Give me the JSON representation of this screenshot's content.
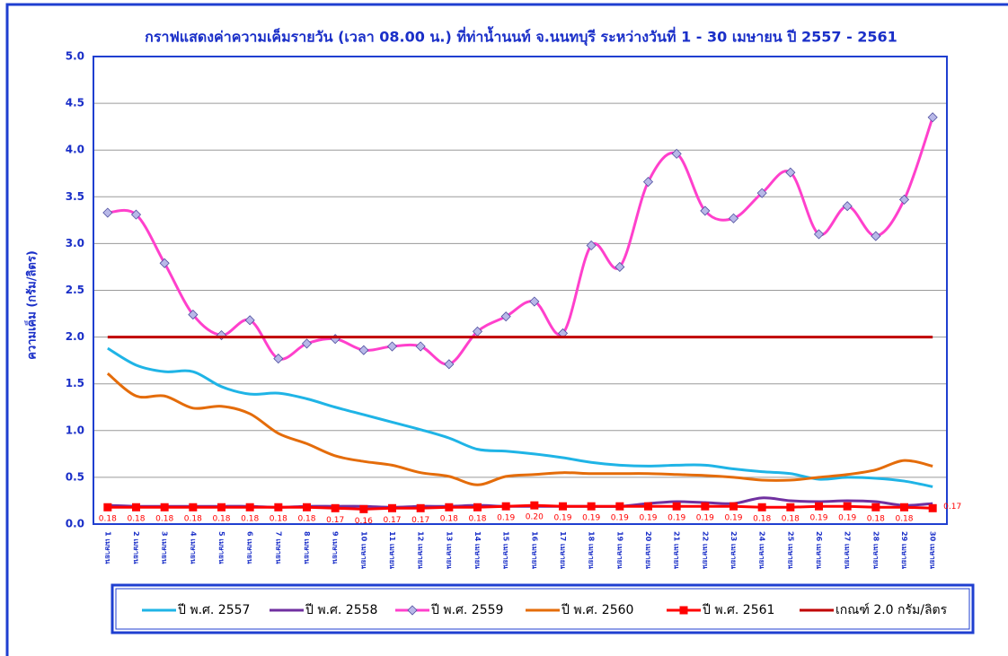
{
  "chart_data": {
    "type": "line",
    "title": "กราฟแสดงค่าความเค็มรายวัน (เวลา 08.00 น.) ที่ท่าน้ำนนท์ จ.นนทบุรี ระหว่างวันที่ 1 - 30 เมษายน ปี 2557 - 2561",
    "y_label": "ความเค็ม (กรัม/ลิตร)",
    "categories": [
      "1 เมษายน",
      "2 เมษายน",
      "3 เมษายน",
      "4 เมษายน",
      "5 เมษายน",
      "6 เมษายน",
      "7 เมษายน",
      "8 เมษายน",
      "9 เมษายน",
      "10 เมษายน",
      "11 เมษายน",
      "12 เมษายน",
      "13 เมษายน",
      "14 เมษายน",
      "15 เมษายน",
      "16 เมษายน",
      "17 เมษายน",
      "18 เมษายน",
      "19 เมษายน",
      "20 เมษายน",
      "21 เมษายน",
      "22 เมษายน",
      "23 เมษายน",
      "24 เมษายน",
      "25 เมษายน",
      "26 เมษายน",
      "27 เมษายน",
      "28 เมษายน",
      "29 เมษายน",
      "30 เมษายน"
    ],
    "series": [
      {
        "name": "ปี พ.ศ. 2557",
        "color": "#1fb4e6",
        "marker": "none",
        "values": [
          1.88,
          1.7,
          1.63,
          1.63,
          1.47,
          1.39,
          1.4,
          1.34,
          1.25,
          1.17,
          1.09,
          1.01,
          0.92,
          0.8,
          0.78,
          0.75,
          0.71,
          0.66,
          0.63,
          0.62,
          0.63,
          0.63,
          0.59,
          0.56,
          0.54,
          0.48,
          0.5,
          0.49,
          0.46,
          0.4
        ]
      },
      {
        "name": "ปี พ.ศ. 2558",
        "color": "#7030a0",
        "marker": "none",
        "values": [
          0.2,
          0.19,
          0.19,
          0.19,
          0.19,
          0.19,
          0.18,
          0.19,
          0.19,
          0.19,
          0.18,
          0.19,
          0.19,
          0.2,
          0.19,
          0.19,
          0.19,
          0.19,
          0.19,
          0.22,
          0.24,
          0.23,
          0.22,
          0.28,
          0.25,
          0.24,
          0.25,
          0.24,
          0.2,
          0.22
        ]
      },
      {
        "name": "ปี พ.ศ. 2559",
        "color": "#ff40cc",
        "marker": "diamond",
        "values": [
          3.33,
          3.31,
          2.79,
          2.24,
          2.02,
          2.18,
          1.77,
          1.93,
          1.98,
          1.86,
          1.9,
          1.9,
          1.71,
          2.06,
          2.22,
          2.38,
          2.04,
          2.98,
          2.75,
          3.66,
          3.96,
          3.35,
          3.27,
          3.54,
          3.76,
          3.1,
          3.4,
          3.08,
          3.47,
          4.35
        ]
      },
      {
        "name": "ปี พ.ศ. 2560",
        "color": "#e46c0a",
        "marker": "none",
        "values": [
          1.61,
          1.37,
          1.37,
          1.24,
          1.26,
          1.18,
          0.97,
          0.86,
          0.73,
          0.67,
          0.63,
          0.55,
          0.51,
          0.42,
          0.51,
          0.53,
          0.55,
          0.54,
          0.54,
          0.54,
          0.53,
          0.52,
          0.5,
          0.47,
          0.47,
          0.5,
          0.53,
          0.58,
          0.68,
          0.62
        ]
      },
      {
        "name": "ปี พ.ศ. 2561",
        "color": "#ff0000",
        "marker": "square",
        "values": [
          0.18,
          0.18,
          0.18,
          0.18,
          0.18,
          0.18,
          0.18,
          0.18,
          0.17,
          0.16,
          0.17,
          0.17,
          0.18,
          0.18,
          0.19,
          0.2,
          0.19,
          0.19,
          0.19,
          0.19,
          0.19,
          0.19,
          0.19,
          0.18,
          0.18,
          0.19,
          0.19,
          0.18,
          0.18,
          0.17
        ],
        "value_labels": [
          "0.18",
          "0.18",
          "0.18",
          "0.18",
          "0.18",
          "0.18",
          "0.18",
          "0.18",
          "0.17",
          "0.16",
          "0.17",
          "0.17",
          "0.18",
          "0.18",
          "0.19",
          "0.20",
          "0.19",
          "0.19",
          "0.19",
          "0.19",
          "0.19",
          "0.19",
          "0.19",
          "0.18",
          "0.18",
          "0.19",
          "0.19",
          "0.18",
          "0.18",
          "0.17"
        ]
      },
      {
        "name": "เกณฑ์ 2.0 กรัม/ลิตร",
        "color": "#c00000",
        "marker": "none",
        "values": [
          2,
          2,
          2,
          2,
          2,
          2,
          2,
          2,
          2,
          2,
          2,
          2,
          2,
          2,
          2,
          2,
          2,
          2,
          2,
          2,
          2,
          2,
          2,
          2,
          2,
          2,
          2,
          2,
          2,
          2
        ]
      }
    ],
    "ylim": [
      0,
      5
    ],
    "yticks": [
      {
        "value": 0,
        "label": "0.0"
      },
      {
        "value": 0.5,
        "label": "0.5"
      },
      {
        "value": 1,
        "label": "1.0"
      },
      {
        "value": 1.5,
        "label": "1.5"
      },
      {
        "value": 2,
        "label": "2.0"
      },
      {
        "value": 2.5,
        "label": "2.5"
      },
      {
        "value": 3,
        "label": "3.0"
      },
      {
        "value": 3.5,
        "label": "3.5"
      },
      {
        "value": 4,
        "label": "4.0"
      },
      {
        "value": 4.5,
        "label": "4.5"
      },
      {
        "value": 5,
        "label": "5.0"
      }
    ],
    "grid": true,
    "legend": "bottom"
  }
}
